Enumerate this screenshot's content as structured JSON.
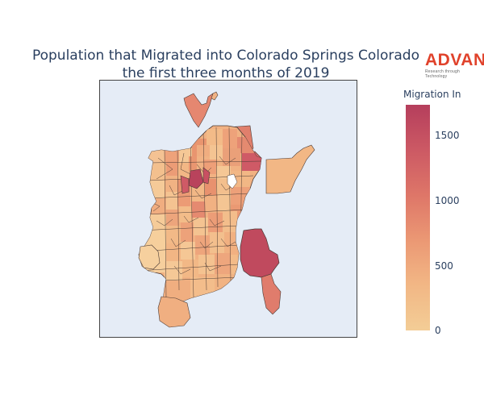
{
  "title_line1": "Population that Migrated into Colorado Springs Colorado",
  "title_line2": "the first three months of 2019",
  "logo": {
    "name": "ADVAN",
    "tagline": "Research through Technology"
  },
  "colorbar": {
    "title": "Migration In",
    "range": [
      0,
      1720
    ],
    "ticks": [
      "1500",
      "1000",
      "500",
      "0"
    ],
    "tick_values": [
      1500,
      1000,
      500,
      0
    ],
    "colors": [
      "#f3cd96",
      "#f2b785",
      "#eb9874",
      "#de7668",
      "#cc5964",
      "#b53e5c"
    ]
  },
  "colors": {
    "title": "#2a3f5f",
    "map_background": "#e5ecf6",
    "tract_border": "#4a3a35",
    "logo": "#e0422b"
  },
  "chart_data": {
    "type": "heatmap",
    "title": "Population that Migrated into Colorado Springs Colorado the first three months of 2019",
    "colorbar_title": "Migration In",
    "color_range": [
      0,
      1720
    ],
    "grid": false
  }
}
